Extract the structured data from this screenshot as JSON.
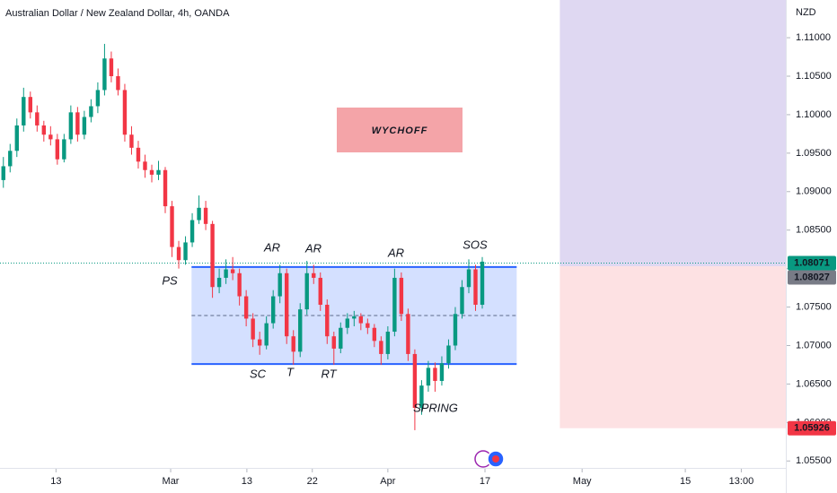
{
  "chart_data": {
    "type": "candlestick",
    "title": "Australian Dollar / New Zealand Dollar, 4h, OANDA",
    "currency": "NZD",
    "up_color": "#089981",
    "down_color": "#f23645",
    "xlim": [
      -0.5,
      116
    ],
    "xticks": [
      {
        "value": 7.8,
        "label": "13"
      },
      {
        "value": 24.8,
        "label": "Mar"
      },
      {
        "value": 36.1,
        "label": "13"
      },
      {
        "value": 45.8,
        "label": "22"
      },
      {
        "value": 57,
        "label": "Apr"
      },
      {
        "value": 71.4,
        "label": "17"
      },
      {
        "value": 85.8,
        "label": "May"
      },
      {
        "value": 101.1,
        "label": "15"
      },
      {
        "value": 109.4,
        "label": "13:00"
      }
    ],
    "ylim": [
      1.0541,
      1.1149
    ],
    "yticks": [
      {
        "value": 1.055,
        "label": "1.05500"
      },
      {
        "value": 1.06,
        "label": "1.06000"
      },
      {
        "value": 1.065,
        "label": "1.06500"
      },
      {
        "value": 1.07,
        "label": "1.07000"
      },
      {
        "value": 1.075,
        "label": "1.07500"
      },
      {
        "value": 1.08,
        "label": "1.08000"
      },
      {
        "value": 1.085,
        "label": "1.08500"
      },
      {
        "value": 1.09,
        "label": "1.09000"
      },
      {
        "value": 1.095,
        "label": "1.09500"
      },
      {
        "value": 1.1,
        "label": "1.10000"
      },
      {
        "value": 1.105,
        "label": "1.10500"
      },
      {
        "value": 1.11,
        "label": "1.11000"
      }
    ],
    "candles": [
      [
        1.0915,
        1.0945,
        1.0905,
        1.0933
      ],
      [
        1.0933,
        1.0962,
        1.0925,
        1.0953
      ],
      [
        1.0953,
        1.0995,
        1.0945,
        1.0986
      ],
      [
        1.0986,
        1.1035,
        1.0978,
        1.1023
      ],
      [
        1.1023,
        1.103,
        1.0995,
        1.1003
      ],
      [
        1.1003,
        1.1012,
        1.0978,
        1.0986
      ],
      [
        1.0986,
        1.0992,
        1.0965,
        1.0974
      ],
      [
        1.0974,
        1.0985,
        1.096,
        1.0968
      ],
      [
        1.0968,
        1.0975,
        1.0935,
        1.0942
      ],
      [
        1.0942,
        1.0975,
        1.0938,
        1.0968
      ],
      [
        1.0968,
        1.1012,
        1.0962,
        1.1003
      ],
      [
        1.1003,
        1.101,
        1.0965,
        1.0974
      ],
      [
        1.0974,
        1.1005,
        1.0968,
        1.0997
      ],
      [
        1.0997,
        1.102,
        1.099,
        1.1011
      ],
      [
        1.1011,
        1.1042,
        1.1002,
        1.1032
      ],
      [
        1.1032,
        1.1092,
        1.1025,
        1.1073
      ],
      [
        1.1073,
        1.1082,
        1.1042,
        1.105
      ],
      [
        1.105,
        1.106,
        1.1025,
        1.1032
      ],
      [
        1.1032,
        1.104,
        1.0965,
        1.0974
      ],
      [
        1.0974,
        1.0985,
        1.0948,
        1.0957
      ],
      [
        1.0957,
        1.0966,
        1.093,
        1.0939
      ],
      [
        1.0939,
        1.0948,
        1.0918,
        1.0928
      ],
      [
        1.0928,
        1.0935,
        1.0912,
        1.0922
      ],
      [
        1.0922,
        1.094,
        1.0915,
        1.0928
      ],
      [
        1.0928,
        1.0932,
        1.0872,
        1.0881
      ],
      [
        1.0881,
        1.0888,
        1.0815,
        1.0828
      ],
      [
        1.0828,
        1.0836,
        1.08,
        1.0811
      ],
      [
        1.0811,
        1.0842,
        1.0805,
        1.0834
      ],
      [
        1.0834,
        1.0872,
        1.0828,
        1.0863
      ],
      [
        1.0863,
        1.0895,
        1.0858,
        1.0879
      ],
      [
        1.0879,
        1.0888,
        1.085,
        1.0858
      ],
      [
        1.0858,
        1.0862,
        1.0762,
        1.0776
      ],
      [
        1.0776,
        1.08,
        1.0768,
        1.0788
      ],
      [
        1.0788,
        1.0812,
        1.078,
        1.0799
      ],
      [
        1.0799,
        1.0815,
        1.0785,
        1.0794
      ],
      [
        1.0794,
        1.08,
        1.0752,
        1.0764
      ],
      [
        1.0764,
        1.0772,
        1.0725,
        1.0735
      ],
      [
        1.0735,
        1.0742,
        1.0698,
        1.0708
      ],
      [
        1.0708,
        1.0718,
        1.0688,
        1.07
      ],
      [
        1.07,
        1.0738,
        1.0695,
        1.0729
      ],
      [
        1.0729,
        1.0772,
        1.0722,
        1.0764
      ],
      [
        1.0764,
        1.0805,
        1.0755,
        1.0794
      ],
      [
        1.0794,
        1.08,
        1.0702,
        1.0712
      ],
      [
        1.0712,
        1.072,
        1.0675,
        1.0692
      ],
      [
        1.0692,
        1.0755,
        1.0685,
        1.0747
      ],
      [
        1.0747,
        1.081,
        1.074,
        1.0794
      ],
      [
        1.0794,
        1.0805,
        1.078,
        1.0788
      ],
      [
        1.0788,
        1.0795,
        1.0745,
        1.0753
      ],
      [
        1.0753,
        1.076,
        1.0702,
        1.0712
      ],
      [
        1.0712,
        1.0718,
        1.0675,
        1.0696
      ],
      [
        1.0696,
        1.073,
        1.069,
        1.0723
      ],
      [
        1.0723,
        1.0742,
        1.0715,
        1.0735
      ],
      [
        1.0735,
        1.0745,
        1.0725,
        1.0738
      ],
      [
        1.0738,
        1.0742,
        1.072,
        1.0729
      ],
      [
        1.0729,
        1.0735,
        1.0715,
        1.0723
      ],
      [
        1.0723,
        1.0728,
        1.0698,
        1.0706
      ],
      [
        1.0706,
        1.0712,
        1.0675,
        1.0689
      ],
      [
        1.0689,
        1.0725,
        1.0682,
        1.0718
      ],
      [
        1.0718,
        1.08,
        1.0712,
        1.0788
      ],
      [
        1.0788,
        1.0795,
        1.0732,
        1.0741
      ],
      [
        1.0741,
        1.0748,
        1.068,
        1.0689
      ],
      [
        1.0689,
        1.0695,
        1.059,
        1.0619
      ],
      [
        1.0619,
        1.0655,
        1.061,
        1.0648
      ],
      [
        1.0648,
        1.068,
        1.064,
        1.0671
      ],
      [
        1.0671,
        1.0678,
        1.064,
        1.0654
      ],
      [
        1.0654,
        1.0686,
        1.0648,
        1.0677
      ],
      [
        1.0677,
        1.0708,
        1.067,
        1.07
      ],
      [
        1.07,
        1.075,
        1.0694,
        1.0741
      ],
      [
        1.0741,
        1.0785,
        1.0735,
        1.0776
      ],
      [
        1.0776,
        1.0812,
        1.0768,
        1.0799
      ],
      [
        1.0799,
        1.0805,
        1.0745,
        1.0753
      ],
      [
        1.0753,
        1.0815,
        1.0748,
        1.0809
      ]
    ],
    "range": {
      "top": 1.0802,
      "bottom": 1.0676,
      "mid": 1.0739,
      "start": 27.9,
      "end": 76.1,
      "color": "#2962ff"
    },
    "position": {
      "start": 82.5,
      "entry": 1.0803,
      "stop": {
        "value": 1.05926,
        "label": "1.05926"
      },
      "target_color": "#d9d1f0",
      "stop_color": "#fde1e3"
    },
    "last_price": {
      "value": 1.08071,
      "label": "1.08071"
    },
    "prev_close": {
      "value": 1.08027,
      "label": "1.08027"
    },
    "headline": "WYCHOFF",
    "annotations": [
      "AR",
      "AR",
      "AR",
      "SOS",
      "PS",
      "SC",
      "T",
      "RT",
      "SPRING"
    ]
  }
}
